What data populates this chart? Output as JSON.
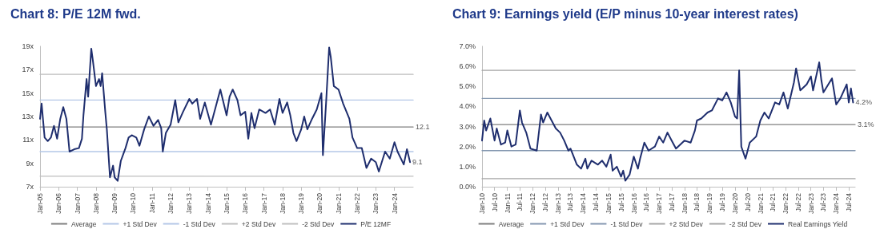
{
  "chart_data": [
    {
      "type": "line",
      "title": "Chart 8: P/E 12M fwd.",
      "legend": "bottom",
      "grid": false,
      "marker": "none",
      "line_style": "solid",
      "xlim": [
        "2005-01",
        "2025-01"
      ],
      "xticks": [
        {
          "value": "2005-01",
          "label": "Jan-05"
        },
        {
          "value": "2006-01",
          "label": "Jan-06"
        },
        {
          "value": "2007-01",
          "label": "Jan-07"
        },
        {
          "value": "2008-01",
          "label": "Jan-08"
        },
        {
          "value": "2009-01",
          "label": "Jan-09"
        },
        {
          "value": "2010-01",
          "label": "Jan-10"
        },
        {
          "value": "2011-01",
          "label": "Jan-11"
        },
        {
          "value": "2012-01",
          "label": "Jan-12"
        },
        {
          "value": "2013-01",
          "label": "Jan-13"
        },
        {
          "value": "2014-01",
          "label": "Jan-14"
        },
        {
          "value": "2015-01",
          "label": "Jan-15"
        },
        {
          "value": "2016-01",
          "label": "Jan-16"
        },
        {
          "value": "2017-01",
          "label": "Jan-17"
        },
        {
          "value": "2018-01",
          "label": "Jan-18"
        },
        {
          "value": "2019-01",
          "label": "Jan-19"
        },
        {
          "value": "2020-01",
          "label": "Jan-20"
        },
        {
          "value": "2021-01",
          "label": "Jan-21"
        },
        {
          "value": "2022-01",
          "label": "Jan-22"
        },
        {
          "value": "2023-01",
          "label": "Jan-23"
        },
        {
          "value": "2024-01",
          "label": "Jan-24"
        }
      ],
      "ylim": [
        7,
        19
      ],
      "yticks": [
        {
          "value": 7,
          "label": "7x"
        },
        {
          "value": 9,
          "label": "9x"
        },
        {
          "value": 11,
          "label": "11x"
        },
        {
          "value": 13,
          "label": "13x"
        },
        {
          "value": 15,
          "label": "15x"
        },
        {
          "value": 17,
          "label": "17x"
        },
        {
          "value": 19,
          "label": "19x"
        }
      ],
      "annotations": [
        {
          "text": "12.1",
          "x": "2025-01",
          "y": 12.1
        },
        {
          "text": "9.1",
          "x": "2024-11",
          "y": 9.1
        }
      ],
      "series": [
        {
          "name": "Average",
          "color": "#7f7f7f",
          "x": [
            "2005-01",
            "2025-01"
          ],
          "values": [
            12.1,
            12.1
          ]
        },
        {
          "name": "+1 Std Dev",
          "color": "#b4c7e7",
          "x": [
            "2005-01",
            "2025-01"
          ],
          "values": [
            14.4,
            14.4
          ]
        },
        {
          "name": "-1 Std Dev",
          "color": "#b4c7e7",
          "x": [
            "2005-01",
            "2025-01"
          ],
          "values": [
            10.0,
            10.0
          ]
        },
        {
          "name": "+2 Std Dev",
          "color": "#bfbfbf",
          "x": [
            "2005-01",
            "2025-01"
          ],
          "values": [
            16.6,
            16.6
          ]
        },
        {
          "name": "-2 Std Dev",
          "color": "#bfbfbf",
          "x": [
            "2005-01",
            "2025-01"
          ],
          "values": [
            7.9,
            7.9
          ]
        },
        {
          "name": "P/E 12MF",
          "color": "#1f2e6e",
          "x": [
            "2005-01",
            "2005-02",
            "2005-03",
            "2005-04",
            "2005-06",
            "2005-08",
            "2005-10",
            "2005-12",
            "2006-02",
            "2006-04",
            "2006-06",
            "2006-08",
            "2006-11",
            "2007-02",
            "2007-04",
            "2007-05",
            "2007-07",
            "2007-08",
            "2007-10",
            "2007-11",
            "2008-01",
            "2008-03",
            "2008-04",
            "2008-05",
            "2008-07",
            "2008-08",
            "2008-10",
            "2008-12",
            "2009-01",
            "2009-03",
            "2009-05",
            "2009-08",
            "2009-10",
            "2009-12",
            "2010-03",
            "2010-05",
            "2010-08",
            "2010-11",
            "2011-02",
            "2011-05",
            "2011-07",
            "2011-08",
            "2011-10",
            "2012-01",
            "2012-04",
            "2012-06",
            "2012-09",
            "2013-01",
            "2013-03",
            "2013-06",
            "2013-08",
            "2013-11",
            "2014-03",
            "2014-06",
            "2014-09",
            "2015-01",
            "2015-03",
            "2015-05",
            "2015-08",
            "2015-10",
            "2016-01",
            "2016-03",
            "2016-05",
            "2016-07",
            "2016-10",
            "2017-02",
            "2017-05",
            "2017-08",
            "2017-11",
            "2018-01",
            "2018-04",
            "2018-06",
            "2018-08",
            "2018-10",
            "2019-01",
            "2019-03",
            "2019-05",
            "2019-08",
            "2019-11",
            "2020-02",
            "2020-03",
            "2020-05",
            "2020-07",
            "2020-08",
            "2020-10",
            "2021-01",
            "2021-04",
            "2021-08",
            "2021-10",
            "2022-01",
            "2022-04",
            "2022-07",
            "2022-10",
            "2023-01",
            "2023-03",
            "2023-07",
            "2023-10",
            "2024-01",
            "2024-03",
            "2024-07",
            "2024-09",
            "2024-11"
          ],
          "values": [
            12.8,
            14.1,
            12.7,
            11.2,
            10.9,
            11.2,
            12.2,
            11.1,
            12.8,
            13.8,
            12.8,
            10.0,
            10.2,
            10.3,
            11.1,
            13.1,
            16.2,
            14.7,
            18.8,
            17.8,
            15.6,
            16.2,
            15.6,
            16.7,
            13.4,
            11.9,
            7.8,
            8.8,
            7.8,
            7.5,
            9.2,
            10.3,
            11.2,
            11.4,
            11.2,
            10.5,
            11.9,
            13.0,
            12.2,
            12.7,
            12.0,
            10.0,
            11.6,
            12.3,
            14.4,
            12.5,
            13.4,
            14.5,
            14.1,
            14.5,
            12.8,
            14.2,
            12.3,
            13.8,
            15.3,
            13.1,
            14.7,
            15.3,
            14.4,
            13.1,
            13.4,
            11.1,
            13.3,
            12.0,
            13.6,
            13.3,
            13.6,
            12.3,
            14.5,
            13.3,
            14.2,
            13.1,
            11.6,
            10.9,
            11.9,
            13.0,
            11.9,
            12.8,
            13.6,
            15.0,
            9.7,
            14.1,
            18.9,
            18.1,
            15.6,
            15.3,
            14.1,
            12.8,
            11.2,
            10.3,
            10.3,
            8.6,
            9.4,
            9.1,
            8.3,
            10.0,
            9.4,
            10.8,
            10.0,
            8.9,
            10.2,
            9.1
          ]
        }
      ]
    },
    {
      "type": "line",
      "title": "Chart 9: Earnings yield (E/P minus 10-year interest rates)",
      "legend": "bottom",
      "grid": false,
      "marker": "none",
      "line_style": "solid",
      "xlim": [
        "2010-01",
        "2024-10"
      ],
      "xticks": [
        {
          "value": "2010-01",
          "label": "Jan-10"
        },
        {
          "value": "2010-07",
          "label": "Jul-10"
        },
        {
          "value": "2011-01",
          "label": "Jan-11"
        },
        {
          "value": "2011-07",
          "label": "Jul-11"
        },
        {
          "value": "2012-01",
          "label": "Jan-12"
        },
        {
          "value": "2012-07",
          "label": "Jul-12"
        },
        {
          "value": "2013-01",
          "label": "Jan-13"
        },
        {
          "value": "2013-07",
          "label": "Jul-13"
        },
        {
          "value": "2014-01",
          "label": "Jan-14"
        },
        {
          "value": "2014-07",
          "label": "Jul-14"
        },
        {
          "value": "2015-01",
          "label": "Jan-15"
        },
        {
          "value": "2015-07",
          "label": "Jul-15"
        },
        {
          "value": "2016-01",
          "label": "Jan-16"
        },
        {
          "value": "2016-07",
          "label": "Jul-16"
        },
        {
          "value": "2017-01",
          "label": "Jan-17"
        },
        {
          "value": "2017-07",
          "label": "Jul-17"
        },
        {
          "value": "2018-01",
          "label": "Jan-18"
        },
        {
          "value": "2018-07",
          "label": "Jul-18"
        },
        {
          "value": "2019-01",
          "label": "Jan-19"
        },
        {
          "value": "2019-07",
          "label": "Jul-19"
        },
        {
          "value": "2020-01",
          "label": "Jan-20"
        },
        {
          "value": "2020-07",
          "label": "Jul-20"
        },
        {
          "value": "2021-01",
          "label": "Jan-21"
        },
        {
          "value": "2021-07",
          "label": "Jul-21"
        },
        {
          "value": "2022-01",
          "label": "Jan-22"
        },
        {
          "value": "2022-07",
          "label": "Jul-22"
        },
        {
          "value": "2023-01",
          "label": "Jan-23"
        },
        {
          "value": "2023-07",
          "label": "Jul-23"
        },
        {
          "value": "2024-01",
          "label": "Jan-24"
        },
        {
          "value": "2024-07",
          "label": "Jul-24"
        }
      ],
      "ylim": [
        0,
        7
      ],
      "yticks": [
        {
          "value": 0,
          "label": "0.0%"
        },
        {
          "value": 1,
          "label": "1.0%"
        },
        {
          "value": 2,
          "label": "2.0%"
        },
        {
          "value": 3,
          "label": "3.0%"
        },
        {
          "value": 4,
          "label": "4.0%"
        },
        {
          "value": 5,
          "label": "5.0%"
        },
        {
          "value": 6,
          "label": "6.0%"
        },
        {
          "value": 7,
          "label": "7.0%"
        }
      ],
      "annotations": [
        {
          "text": "4.2%",
          "x": "2024-09",
          "y": 4.2
        },
        {
          "text": "3.1%",
          "x": "2024-10",
          "y": 3.1
        }
      ],
      "series": [
        {
          "name": "Average",
          "color": "#7f7f7f",
          "x": [
            "2010-01",
            "2024-10"
          ],
          "values": [
            3.1,
            3.1
          ]
        },
        {
          "name": "+1 Std Dev",
          "color": "#8497b0",
          "x": [
            "2010-01",
            "2024-10"
          ],
          "values": [
            4.4,
            4.4
          ]
        },
        {
          "name": "-1 Std Dev",
          "color": "#8497b0",
          "x": [
            "2010-01",
            "2024-10"
          ],
          "values": [
            1.8,
            1.8
          ]
        },
        {
          "name": "+2 Std Dev",
          "color": "#a6a6a6",
          "x": [
            "2010-01",
            "2024-10"
          ],
          "values": [
            5.8,
            5.8
          ]
        },
        {
          "name": "-2 Std Dev",
          "color": "#a6a6a6",
          "x": [
            "2010-01",
            "2024-10"
          ],
          "values": [
            0.4,
            0.4
          ]
        },
        {
          "name": "Real Earnings Yield",
          "color": "#1f2e6e",
          "x": [
            "2010-01",
            "2010-02",
            "2010-03",
            "2010-05",
            "2010-07",
            "2010-08",
            "2010-10",
            "2010-12",
            "2011-01",
            "2011-03",
            "2011-05",
            "2011-07",
            "2011-08",
            "2011-10",
            "2011-12",
            "2012-03",
            "2012-05",
            "2012-06",
            "2012-08",
            "2012-10",
            "2012-12",
            "2013-02",
            "2013-04",
            "2013-06",
            "2013-07",
            "2013-10",
            "2013-12",
            "2014-02",
            "2014-03",
            "2014-05",
            "2014-08",
            "2014-10",
            "2014-12",
            "2015-02",
            "2015-03",
            "2015-05",
            "2015-07",
            "2015-08",
            "2015-09",
            "2015-11",
            "2016-01",
            "2016-03",
            "2016-04",
            "2016-06",
            "2016-08",
            "2016-11",
            "2017-01",
            "2017-03",
            "2017-05",
            "2017-07",
            "2017-09",
            "2017-11",
            "2018-01",
            "2018-04",
            "2018-06",
            "2018-07",
            "2018-09",
            "2018-12",
            "2019-02",
            "2019-05",
            "2019-07",
            "2019-09",
            "2019-11",
            "2020-01",
            "2020-02",
            "2020-03",
            "2020-04",
            "2020-06",
            "2020-08",
            "2020-11",
            "2021-01",
            "2021-03",
            "2021-05",
            "2021-08",
            "2021-10",
            "2021-12",
            "2022-02",
            "2022-05",
            "2022-06",
            "2022-08",
            "2022-11",
            "2023-01",
            "2023-02",
            "2023-05",
            "2023-06",
            "2023-07",
            "2023-11",
            "2024-01",
            "2024-03",
            "2024-06",
            "2024-07",
            "2024-08",
            "2024-09"
          ],
          "values": [
            2.3,
            3.3,
            2.8,
            3.4,
            2.3,
            2.9,
            2.1,
            2.2,
            2.8,
            2.0,
            2.1,
            3.8,
            3.2,
            2.7,
            1.9,
            1.8,
            3.6,
            3.2,
            3.7,
            3.3,
            2.9,
            2.7,
            2.3,
            1.8,
            1.9,
            1.1,
            0.9,
            1.4,
            0.9,
            1.3,
            1.1,
            1.3,
            1.0,
            1.6,
            0.8,
            1.0,
            0.5,
            0.8,
            0.3,
            0.6,
            1.5,
            0.9,
            1.4,
            2.2,
            1.8,
            2.0,
            2.5,
            2.2,
            2.7,
            2.3,
            1.9,
            2.1,
            2.3,
            2.2,
            2.8,
            3.3,
            3.4,
            3.7,
            3.8,
            4.4,
            4.3,
            4.7,
            4.2,
            3.5,
            3.4,
            5.8,
            2.0,
            1.4,
            2.2,
            2.5,
            3.3,
            3.7,
            3.4,
            4.2,
            4.1,
            4.7,
            3.9,
            5.2,
            5.9,
            4.8,
            5.1,
            5.5,
            4.8,
            6.2,
            5.3,
            4.7,
            5.4,
            4.1,
            4.4,
            5.1,
            4.2,
            4.9,
            4.2
          ]
        }
      ]
    }
  ]
}
